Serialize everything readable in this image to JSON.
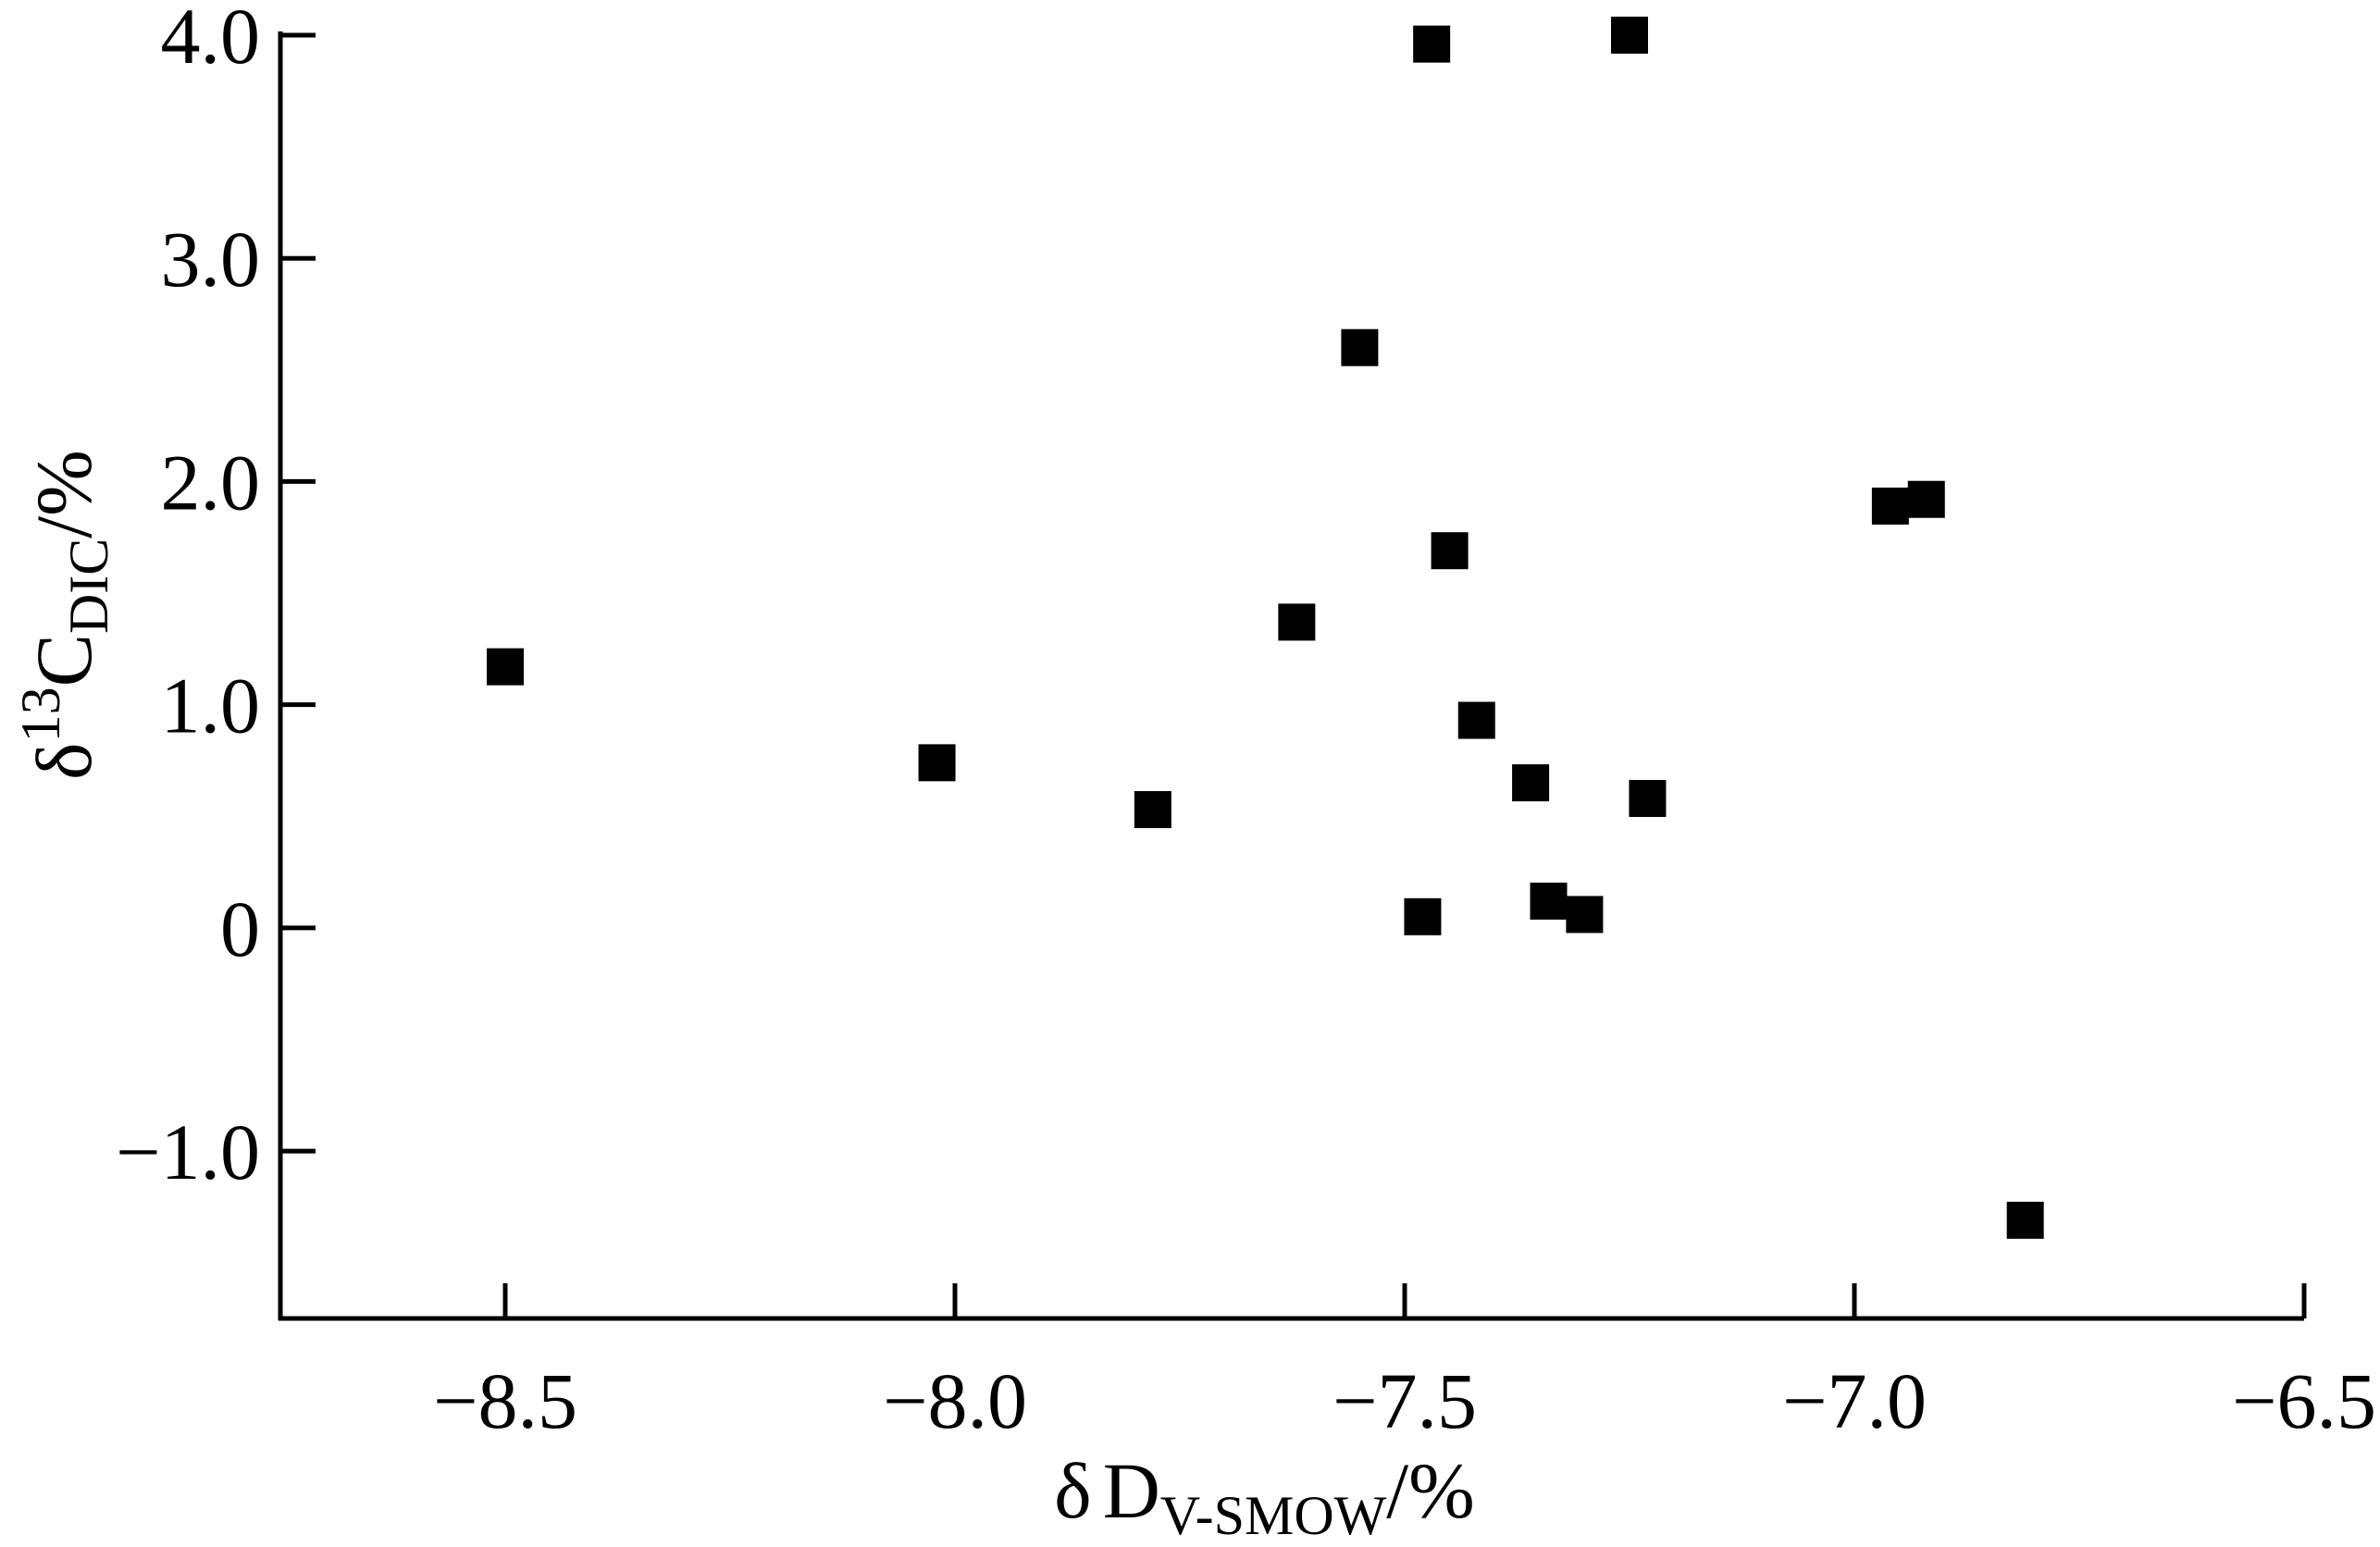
{
  "chart_data": {
    "type": "scatter",
    "xlabel": {
      "symbol": "δ",
      "main": "D",
      "sub": "V-SMOW",
      "unit": "/%"
    },
    "ylabel": {
      "symbol": "δ",
      "sup": "13",
      "main": "C",
      "sub": "DIC",
      "unit": "/%"
    },
    "xlim": [
      -8.75,
      -6.5
    ],
    "ylim": [
      -1.75,
      4.0
    ],
    "xticks": [
      -8.5,
      -8.0,
      -7.5,
      -7.0,
      -6.5
    ],
    "xtick_labels": [
      "−8.5",
      "−8.0",
      "−7.5",
      "−7.0",
      "−6.5"
    ],
    "yticks": [
      4.0,
      3.0,
      2.0,
      1.0,
      0,
      -1.0
    ],
    "ytick_labels": [
      "4.0",
      "3.0",
      "2.0",
      "1.0",
      "0",
      "−1.0"
    ],
    "marker": "square",
    "marker_color": "#000000",
    "grid": false,
    "points": [
      {
        "x": -8.5,
        "y": 1.17
      },
      {
        "x": -8.02,
        "y": 0.74
      },
      {
        "x": -7.78,
        "y": 0.53
      },
      {
        "x": -7.62,
        "y": 1.37
      },
      {
        "x": -7.55,
        "y": 2.6
      },
      {
        "x": -7.47,
        "y": 3.96
      },
      {
        "x": -7.45,
        "y": 1.69
      },
      {
        "x": -7.48,
        "y": 0.05
      },
      {
        "x": -7.42,
        "y": 0.93
      },
      {
        "x": -7.36,
        "y": 0.65
      },
      {
        "x": -7.34,
        "y": 0.12
      },
      {
        "x": -7.3,
        "y": 0.06
      },
      {
        "x": -7.25,
        "y": 4.0
      },
      {
        "x": -7.23,
        "y": 0.58
      },
      {
        "x": -6.96,
        "y": 1.89
      },
      {
        "x": -6.92,
        "y": 1.92
      },
      {
        "x": -6.81,
        "y": -1.31
      }
    ]
  }
}
